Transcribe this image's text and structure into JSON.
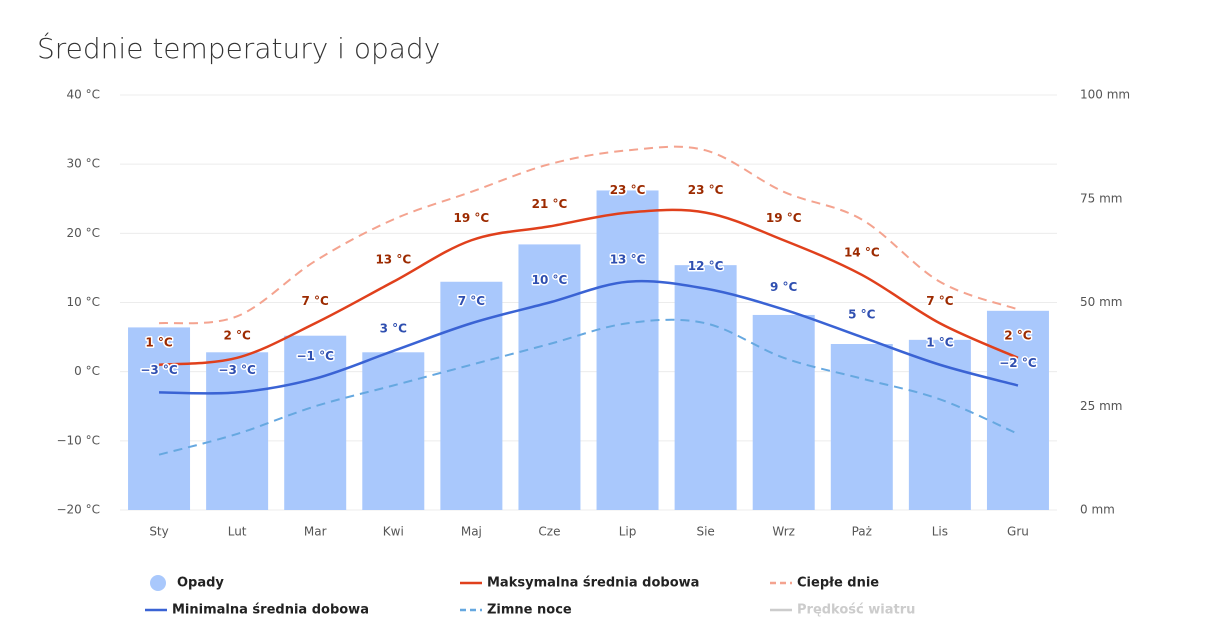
{
  "chart_data": {
    "type": "climate",
    "title": "Średnie temperatury i opady",
    "categories": [
      "Sty",
      "Lut",
      "Mar",
      "Kwi",
      "Maj",
      "Cze",
      "Lip",
      "Sie",
      "Wrz",
      "Paż",
      "Lis",
      "Gru"
    ],
    "ylim": [
      -20,
      40
    ],
    "yticks": [
      {
        "value": -20,
        "label": "−20 °C"
      },
      {
        "value": -10,
        "label": "−10 °C"
      },
      {
        "value": 0,
        "label": "0 °C"
      },
      {
        "value": 10,
        "label": "10 °C"
      },
      {
        "value": 20,
        "label": "20 °C"
      },
      {
        "value": 30,
        "label": "30 °C"
      },
      {
        "value": 40,
        "label": "40 °C"
      }
    ],
    "y2lim": [
      0,
      100
    ],
    "y2ticks": [
      {
        "value": 0,
        "label": "0 mm"
      },
      {
        "value": 25,
        "label": "25 mm"
      },
      {
        "value": 50,
        "label": "50 mm"
      },
      {
        "value": 75,
        "label": "75 mm"
      },
      {
        "value": 100,
        "label": "100 mm"
      }
    ],
    "grid": true,
    "series": [
      {
        "name": "Opady",
        "kind": "bar",
        "axis": "y2",
        "color": "#a9c8fc",
        "values": [
          44,
          38,
          42,
          38,
          55,
          64,
          77,
          59,
          47,
          40,
          41,
          48
        ]
      },
      {
        "name": "Maksymalna średnia dobowa",
        "kind": "line",
        "color": "#e0401c",
        "label_color": "#9c2a00",
        "values": [
          1,
          2,
          7,
          13,
          19,
          21,
          23,
          23,
          19,
          14,
          7,
          2
        ],
        "value_labels": [
          "1 °C",
          "2 °C",
          "7 °C",
          "13 °C",
          "19 °C",
          "21 °C",
          "23 °C",
          "23 °C",
          "19 °C",
          "14 °C",
          "7 °C",
          "2 °C"
        ]
      },
      {
        "name": "Ciepłe dnie",
        "kind": "dashed",
        "color": "#f4a38f",
        "values": [
          7,
          8,
          16,
          22,
          26,
          30,
          32,
          32,
          26,
          22,
          13,
          9
        ]
      },
      {
        "name": "Minimalna średnia dobowa",
        "kind": "line",
        "color": "#3a63d4",
        "label_color": "#2f4fb0",
        "values": [
          -3,
          -3,
          -1,
          3,
          7,
          10,
          13,
          12,
          9,
          5,
          1,
          -2
        ],
        "value_labels": [
          "−3 °C",
          "−3 °C",
          "−1 °C",
          "3 °C",
          "7 °C",
          "10 °C",
          "13 °C",
          "12 °C",
          "9 °C",
          "5 °C",
          "1 °C",
          "−2 °C"
        ]
      },
      {
        "name": "Zimne noce",
        "kind": "dashed",
        "color": "#66a8e0",
        "values": [
          -12,
          -9,
          -5,
          -2,
          1,
          4,
          7,
          7,
          2,
          -1,
          -4,
          -9
        ]
      }
    ],
    "inactive_legend": {
      "name": "Prędkość wiatru",
      "color": "#cccccc"
    }
  }
}
